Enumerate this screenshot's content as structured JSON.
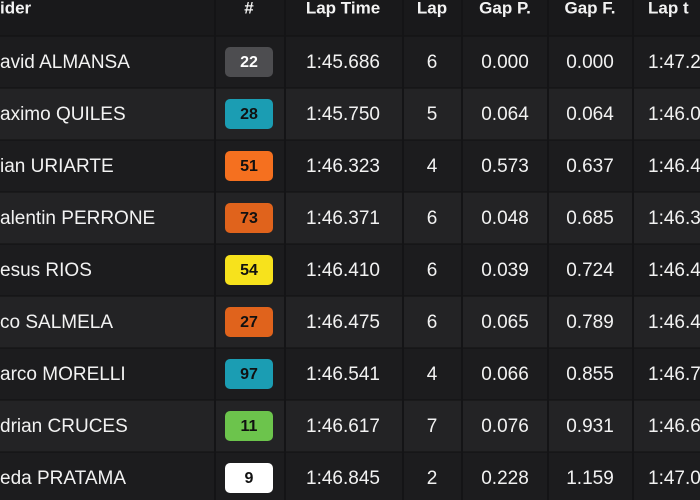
{
  "table": {
    "header": [
      "ider",
      "#",
      "Lap Time",
      "Lap",
      "Gap P.",
      "Gap F.",
      "Lap t"
    ],
    "rows": [
      {
        "rider": "avid ALMANSA",
        "number": "22",
        "badge_color": "#4d4d50",
        "badge_text": "#ffffff",
        "lap_time": "1:45.686",
        "lap": "6",
        "gap_p": "0.000",
        "gap_f": "0.000",
        "lap_t": "1:47.2"
      },
      {
        "rider": "aximo QUILES",
        "number": "28",
        "badge_color": "#1b9db3",
        "badge_text": "#111111",
        "lap_time": "1:45.750",
        "lap": "5",
        "gap_p": "0.064",
        "gap_f": "0.064",
        "lap_t": "1:46.0"
      },
      {
        "rider": "ian URIARTE",
        "number": "51",
        "badge_color": "#f5701f",
        "badge_text": "#111111",
        "lap_time": "1:46.323",
        "lap": "4",
        "gap_p": "0.573",
        "gap_f": "0.637",
        "lap_t": "1:46.4"
      },
      {
        "rider": "alentin PERRONE",
        "number": "73",
        "badge_color": "#e0631c",
        "badge_text": "#111111",
        "lap_time": "1:46.371",
        "lap": "6",
        "gap_p": "0.048",
        "gap_f": "0.685",
        "lap_t": "1:46.3"
      },
      {
        "rider": "esus RIOS",
        "number": "54",
        "badge_color": "#f7e21c",
        "badge_text": "#111111",
        "lap_time": "1:46.410",
        "lap": "6",
        "gap_p": "0.039",
        "gap_f": "0.724",
        "lap_t": "1:46.4"
      },
      {
        "rider": "co SALMELA",
        "number": "27",
        "badge_color": "#e0631c",
        "badge_text": "#111111",
        "lap_time": "1:46.475",
        "lap": "6",
        "gap_p": "0.065",
        "gap_f": "0.789",
        "lap_t": "1:46.4"
      },
      {
        "rider": "arco MORELLI",
        "number": "97",
        "badge_color": "#1b9db3",
        "badge_text": "#111111",
        "lap_time": "1:46.541",
        "lap": "4",
        "gap_p": "0.066",
        "gap_f": "0.855",
        "lap_t": "1:46.7"
      },
      {
        "rider": "drian CRUCES",
        "number": "11",
        "badge_color": "#6cc44c",
        "badge_text": "#111111",
        "lap_time": "1:46.617",
        "lap": "7",
        "gap_p": "0.076",
        "gap_f": "0.931",
        "lap_t": "1:46.6"
      },
      {
        "rider": "eda PRATAMA",
        "number": "9",
        "badge_color": "#ffffff",
        "badge_text": "#111111",
        "lap_time": "1:46.845",
        "lap": "2",
        "gap_p": "0.228",
        "gap_f": "1.159",
        "lap_t": "1:47.0"
      }
    ]
  }
}
